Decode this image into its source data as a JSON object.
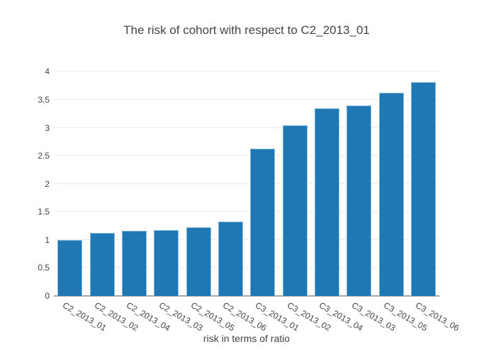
{
  "chart_data": {
    "type": "bar",
    "title": "The risk of cohort with respect to C2_2013_01",
    "xlabel": "risk in terms of ratio",
    "ylabel": "",
    "categories": [
      "C2_2013_01",
      "C2_2013_02",
      "C2_2013_04",
      "C2_2013_03",
      "C2_2013_05",
      "C2_2013_06",
      "C3_2013_01",
      "C3_2013_02",
      "C3_2013_04",
      "C3_2013_03",
      "C3_2013_05",
      "C3_2013_06"
    ],
    "values": [
      1.0,
      1.13,
      1.16,
      1.18,
      1.22,
      1.33,
      2.63,
      3.05,
      3.35,
      3.4,
      3.62,
      3.82
    ],
    "ylim": [
      0,
      4.08
    ],
    "yticks": [
      0,
      0.5,
      1,
      1.5,
      2,
      2.5,
      3,
      3.5,
      4
    ],
    "grid": true,
    "legend": "none",
    "tick_angle_deg": 30,
    "colors": {
      "bar": "#1f77b4",
      "bar_edge": "#85b8da",
      "gridline": "#ebebeb",
      "axis_line": "#a7a7a7",
      "text": "#444444",
      "background": "#ffffff"
    }
  }
}
